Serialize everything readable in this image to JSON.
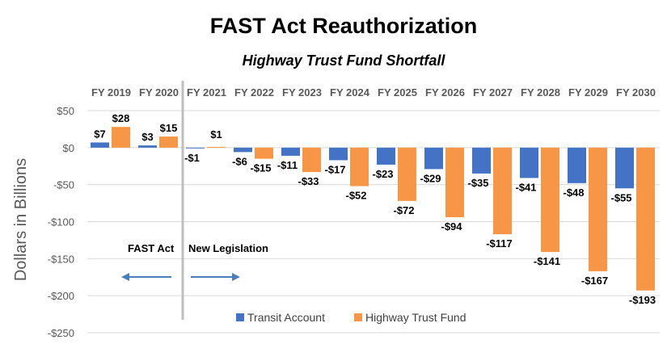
{
  "chart_data": {
    "type": "bar",
    "title": "FAST Act Reauthorization",
    "subtitle": "Highway Trust Fund Shortfall",
    "ylabel": "Dollars in Billions",
    "xlabel": "",
    "ylim": [
      -250,
      50
    ],
    "yticks": [
      50,
      0,
      -50,
      -100,
      -150,
      -200,
      -250
    ],
    "ytick_labels": [
      "$50",
      "$0",
      "-$50",
      "-$100",
      "-$150",
      "-$200",
      "-$250"
    ],
    "grid": true,
    "legend_position": "bottom",
    "categories": [
      "FY 2019",
      "FY 2020",
      "FY 2021",
      "FY 2022",
      "FY 2023",
      "FY 2024",
      "FY 2025",
      "FY 2026",
      "FY 2027",
      "FY 2028",
      "FY 2029",
      "FY 2030"
    ],
    "series": [
      {
        "name": "Transit Account",
        "color": "#4472C4",
        "values": [
          7,
          3,
          -1,
          -6,
          -11,
          -17,
          -23,
          -29,
          -35,
          -41,
          -48,
          -55
        ],
        "labels": [
          "$7",
          "$3",
          "-$1",
          "-$6",
          "-$11",
          "-$17",
          "-$23",
          "-$29",
          "-$35",
          "-$41",
          "-$48",
          "-$55"
        ]
      },
      {
        "name": "Highway Trust Fund",
        "color": "#F79646",
        "values": [
          28,
          15,
          1,
          -15,
          -33,
          -52,
          -72,
          -94,
          -117,
          -141,
          -167,
          -193
        ],
        "labels": [
          "$28",
          "$15",
          "$1",
          "-$15",
          "-$33",
          "-$52",
          "-$72",
          "-$94",
          "-$117",
          "-$141",
          "-$167",
          "-$193"
        ]
      }
    ],
    "annotations": {
      "left": "FAST Act",
      "right": "New Legislation"
    }
  }
}
